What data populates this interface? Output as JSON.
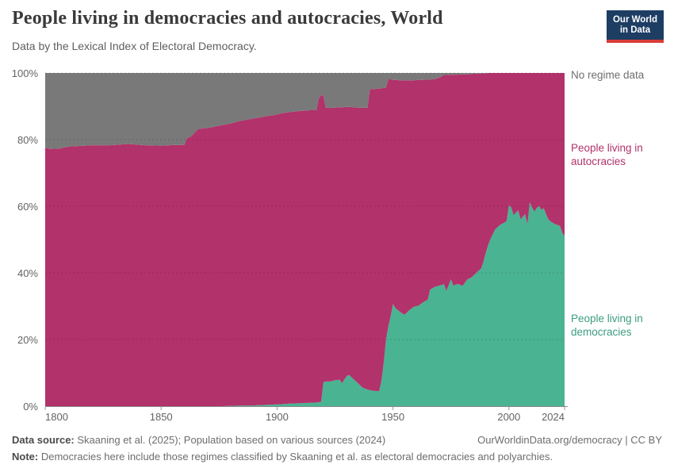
{
  "header": {
    "title": "People living in democracies and autocracies, World",
    "subtitle": "Data by the Lexical Index of Electoral Democracy.",
    "logo": {
      "line1": "Our World",
      "line2": "in Data",
      "bg_color": "#1d3d63",
      "accent_color": "#d93d37"
    }
  },
  "legend": {
    "no_regime": {
      "label": "No regime data",
      "text_color": "#6e6e6e"
    },
    "autocracies": {
      "label_line1": "People living in",
      "label_line2": "autocracies",
      "text_color": "#b1326b"
    },
    "democracies": {
      "label_line1": "People living in",
      "label_line2": "democracies",
      "text_color": "#3d9c80"
    }
  },
  "chart_data": {
    "type": "area",
    "stacked_percent": true,
    "title": "People living in democracies and autocracies, World",
    "x_domain": [
      1800,
      2024
    ],
    "y_domain": [
      0,
      100
    ],
    "x_ticks": [
      1800,
      1850,
      1900,
      1950,
      2000,
      2024
    ],
    "x_tick_labels": [
      "1800",
      "1850",
      "1900",
      "1950",
      "2000",
      "2024"
    ],
    "y_ticks": [
      0,
      20,
      40,
      60,
      80,
      100
    ],
    "y_tick_labels": [
      "0%",
      "20%",
      "40%",
      "60%",
      "80%",
      "100%"
    ],
    "grid": true,
    "legend_position": "right",
    "series_info": [
      {
        "name": "People living in democracies",
        "color": "#4ab392",
        "role": "bottom band: 0 .. dem"
      },
      {
        "name": "People living in autocracies",
        "color": "#b2326b",
        "role": "middle band: dem .. top"
      },
      {
        "name": "No regime data",
        "color": "#797979",
        "role": "upper band: top .. 100"
      }
    ],
    "points_format": "[year, dem_share_pct, regime_data_top_pct] ; autocracy share = top - dem ; no-data share = 100 - top",
    "points": [
      [
        1800,
        0,
        77.6
      ],
      [
        1802,
        0,
        77.2
      ],
      [
        1806,
        0,
        77.3
      ],
      [
        1810,
        0,
        77.9
      ],
      [
        1815,
        0,
        78.1
      ],
      [
        1820,
        0,
        78.3
      ],
      [
        1828,
        0,
        78.3
      ],
      [
        1836,
        0,
        78.7
      ],
      [
        1843,
        0,
        78.3
      ],
      [
        1850,
        0,
        78.2
      ],
      [
        1856,
        0,
        78.4
      ],
      [
        1860,
        0,
        78.4
      ],
      [
        1861,
        0,
        80.3
      ],
      [
        1863,
        0,
        81.0
      ],
      [
        1866,
        0,
        83.2
      ],
      [
        1871,
        0,
        83.6
      ],
      [
        1876,
        0,
        84.3
      ],
      [
        1880,
        0.1,
        84.8
      ],
      [
        1884,
        0.2,
        85.6
      ],
      [
        1888,
        0.2,
        86.1
      ],
      [
        1892,
        0.3,
        86.6
      ],
      [
        1896,
        0.4,
        87.1
      ],
      [
        1899,
        0.5,
        87.4
      ],
      [
        1902,
        0.6,
        87.9
      ],
      [
        1906,
        0.8,
        88.3
      ],
      [
        1910,
        0.9,
        88.6
      ],
      [
        1914,
        1.0,
        88.8
      ],
      [
        1917,
        1.1,
        88.8
      ],
      [
        1918,
        1.2,
        92.3
      ],
      [
        1919,
        1.3,
        93.4
      ],
      [
        1920,
        7.2,
        93.2
      ],
      [
        1921,
        7.4,
        89.6
      ],
      [
        1923,
        7.4,
        89.5
      ],
      [
        1925,
        7.8,
        89.6
      ],
      [
        1927,
        7.9,
        89.7
      ],
      [
        1928,
        6.9,
        89.7
      ],
      [
        1930,
        9.0,
        89.8
      ],
      [
        1931,
        9.4,
        89.8
      ],
      [
        1933,
        8.1,
        89.7
      ],
      [
        1935,
        6.8,
        89.6
      ],
      [
        1937,
        5.5,
        89.6
      ],
      [
        1939,
        5.0,
        89.6
      ],
      [
        1940,
        4.8,
        95.1
      ],
      [
        1942,
        4.6,
        95.2
      ],
      [
        1944,
        4.5,
        95.3
      ],
      [
        1945,
        7.5,
        95.4
      ],
      [
        1946,
        13,
        95.5
      ],
      [
        1947,
        20,
        95.6
      ],
      [
        1948,
        24,
        98.1
      ],
      [
        1949,
        27,
        98.1
      ],
      [
        1950,
        30.7,
        97.9
      ],
      [
        1951,
        29.5,
        97.9
      ],
      [
        1953,
        28.3,
        97.8
      ],
      [
        1955,
        27.4,
        97.8
      ],
      [
        1957,
        28.8,
        97.8
      ],
      [
        1959,
        29.8,
        97.8
      ],
      [
        1961,
        30.2,
        97.9
      ],
      [
        1963,
        31.2,
        97.9
      ],
      [
        1965,
        32,
        98.0
      ],
      [
        1966,
        35,
        98.0
      ],
      [
        1968,
        35.8,
        98.2
      ],
      [
        1970,
        36.2,
        98.6
      ],
      [
        1972,
        36.6,
        99.4
      ],
      [
        1973,
        34.6,
        99.4
      ],
      [
        1975,
        38.1,
        99.5
      ],
      [
        1976,
        36.2,
        99.5
      ],
      [
        1978,
        36.7,
        99.5
      ],
      [
        1980,
        36.1,
        99.6
      ],
      [
        1982,
        38,
        99.6
      ],
      [
        1984,
        38.7,
        99.7
      ],
      [
        1986,
        40.1,
        99.8
      ],
      [
        1988,
        41.3,
        99.8
      ],
      [
        1989,
        43.4,
        99.9
      ],
      [
        1990,
        46,
        99.9
      ],
      [
        1991,
        48.3,
        100
      ],
      [
        1992,
        50.1,
        100
      ],
      [
        1994,
        53,
        100
      ],
      [
        1996,
        54.3,
        100
      ],
      [
        1998,
        55.1,
        100
      ],
      [
        1999,
        55.6,
        100
      ],
      [
        2000,
        60.3,
        100
      ],
      [
        2001,
        59.7,
        100
      ],
      [
        2002,
        57.3,
        100
      ],
      [
        2004,
        58.8,
        100
      ],
      [
        2005,
        56.1,
        100
      ],
      [
        2007,
        57.7,
        100
      ],
      [
        2008,
        54.6,
        100
      ],
      [
        2009,
        61.2,
        100
      ],
      [
        2010,
        59.6,
        100
      ],
      [
        2011,
        58.4,
        100
      ],
      [
        2012,
        59.5,
        100
      ],
      [
        2013,
        60.1,
        100
      ],
      [
        2014,
        58.9,
        100
      ],
      [
        2015,
        59.4,
        100
      ],
      [
        2016,
        57.7,
        100
      ],
      [
        2017,
        56.1,
        100
      ],
      [
        2018,
        55.4,
        100
      ],
      [
        2019,
        55.0,
        100
      ],
      [
        2020,
        54.6,
        100
      ],
      [
        2021,
        54.4,
        100
      ],
      [
        2022,
        54.1,
        100
      ],
      [
        2023,
        52.1,
        100
      ],
      [
        2024,
        51.0,
        100
      ]
    ],
    "colors": {
      "democracies_area": "#4ab392",
      "autocracies_area": "#b2326b",
      "no_regime_area": "#797979",
      "gridline": "rgba(0,0,0,0.16)",
      "axis_line": "#8a8a8a",
      "tick_text": "#636363"
    }
  },
  "footer": {
    "source_label": "Data source:",
    "source_text": "Skaaning et al. (2025); Population based on various sources (2024)",
    "link_text": "OurWorldinData.org/democracy | CC BY",
    "note_label": "Note:",
    "note_text": "Democracies here include those regimes classified by Skaaning et al. as electoral democracies and polyarchies."
  }
}
